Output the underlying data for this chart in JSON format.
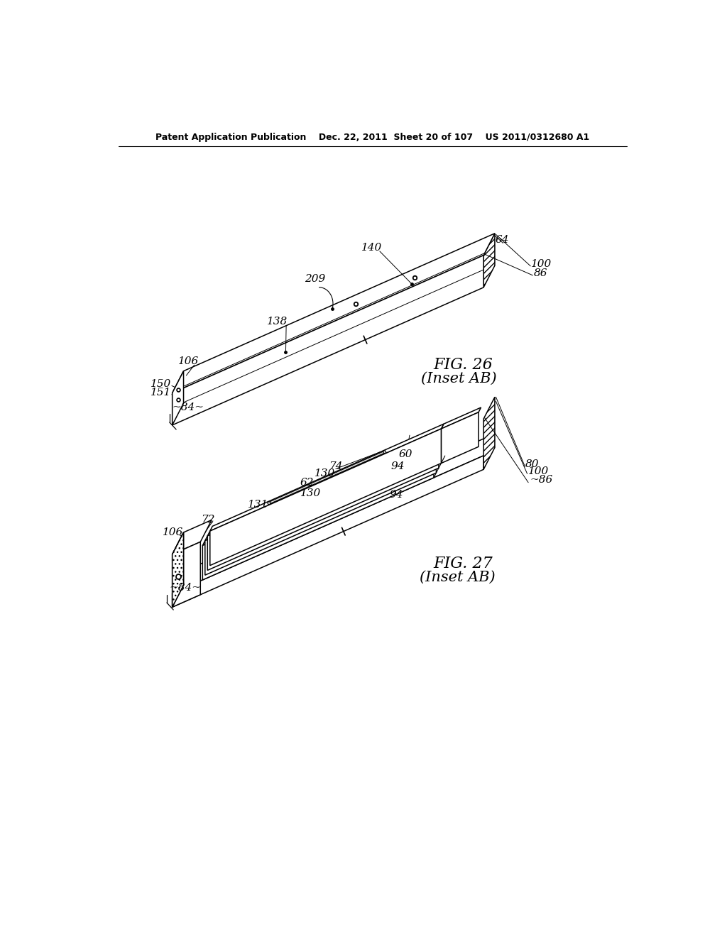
{
  "bg_color": "#ffffff",
  "header": "Patent Application Publication    Dec. 22, 2011  Sheet 20 of 107    US 2011/0312680 A1",
  "fig26_label": "FIG. 26",
  "fig26_sub": "(Inset AB)",
  "fig27_label": "FIG. 27",
  "fig27_sub": "(Inset AB)",
  "line_color": "#000000",
  "hatch_color": "#000000"
}
